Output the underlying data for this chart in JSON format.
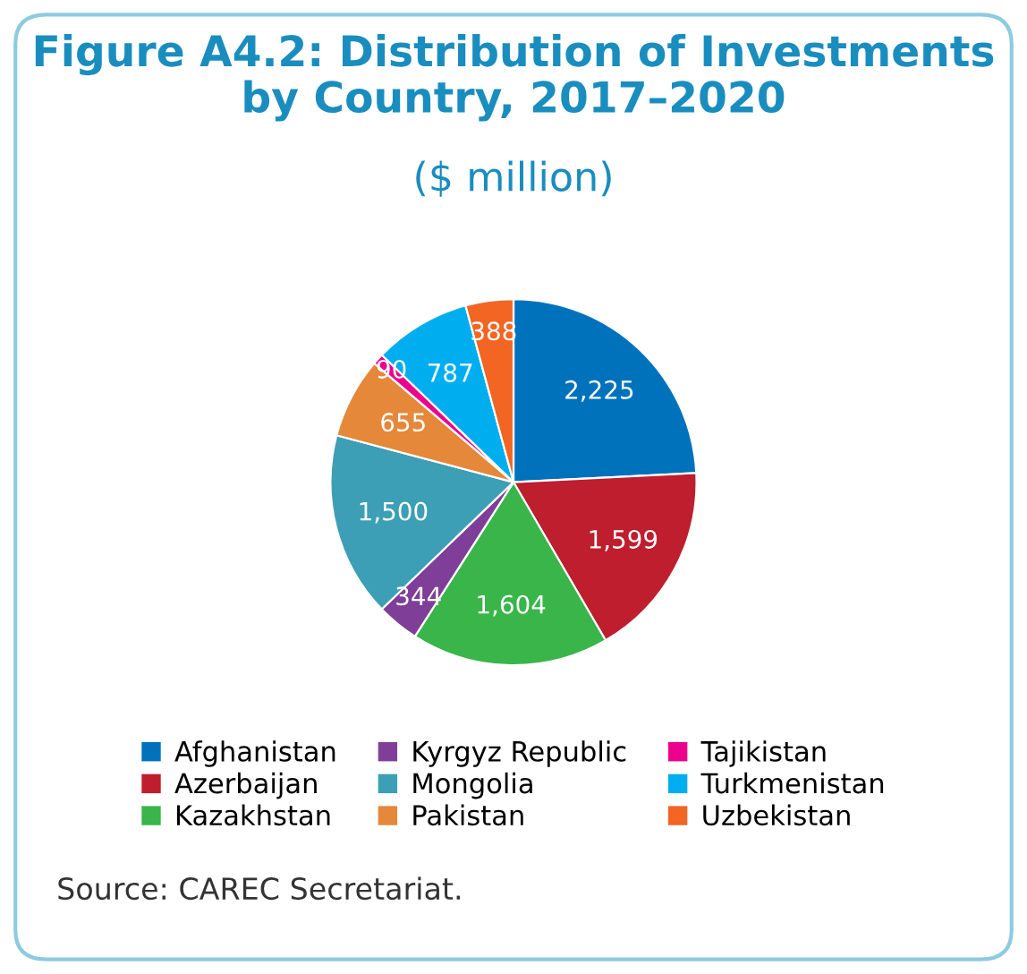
{
  "chart_data": {
    "type": "pie",
    "title": "Figure A4.2: Distribution of Investments\nby Country, 2017–2020",
    "subtitle": "($ million)",
    "categories": [
      "Afghanistan",
      "Azerbaijan",
      "Kazakhstan",
      "Kyrgyz Republic",
      "Mongolia",
      "Pakistan",
      "Tajikistan",
      "Turkmenistan",
      "Uzbekistan"
    ],
    "values": [
      2225,
      1599,
      1604,
      344,
      1500,
      655,
      90,
      787,
      388
    ],
    "colors": [
      "#0072bc",
      "#be1e2d",
      "#39b54a",
      "#7f3f98",
      "#3d9fb5",
      "#e5883a",
      "#ec008c",
      "#00aeef",
      "#f26522"
    ],
    "value_labels": [
      "2,225",
      "1,599",
      "1,604",
      "344",
      "1,500",
      "655",
      "90",
      "787",
      "388"
    ],
    "legend": "bottom",
    "annotations": [
      "Source: CAREC Secretariat."
    ]
  }
}
